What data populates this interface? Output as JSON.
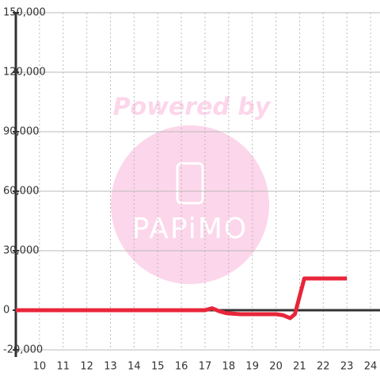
{
  "chart_data": {
    "type": "line",
    "watermark": "Powered by",
    "watermark_logo": "PAPiMO",
    "x": [
      9,
      10,
      11,
      12,
      13,
      14,
      15,
      16,
      17,
      17.3,
      17.6,
      17.9,
      18.5,
      19.5,
      20,
      20.3,
      20.6,
      20.8,
      21.2,
      23
    ],
    "series": [
      {
        "color": "#e8253a",
        "values": [
          0,
          0,
          0,
          0,
          0,
          0,
          0,
          0,
          0,
          1000,
          -500,
          -1500,
          -2000,
          -2000,
          -2000,
          -2500,
          -4000,
          -2000,
          16000,
          16000
        ]
      }
    ],
    "xlim": [
      9,
      24.4
    ],
    "xticks": [
      10,
      11,
      12,
      13,
      14,
      15,
      16,
      17,
      18,
      19,
      20,
      21,
      22,
      23,
      24
    ],
    "ylim": [
      -20000,
      150000
    ],
    "yticks": [
      {
        "value": -20000,
        "label": "-20,000"
      },
      0,
      {
        "value": 30000,
        "label": "30,000"
      },
      {
        "value": 60000,
        "label": "60,000"
      },
      {
        "value": 90000,
        "label": "90,000"
      },
      {
        "value": 120000,
        "label": "120,000"
      },
      {
        "value": 150000,
        "label": "150,000"
      }
    ],
    "grid": true
  }
}
